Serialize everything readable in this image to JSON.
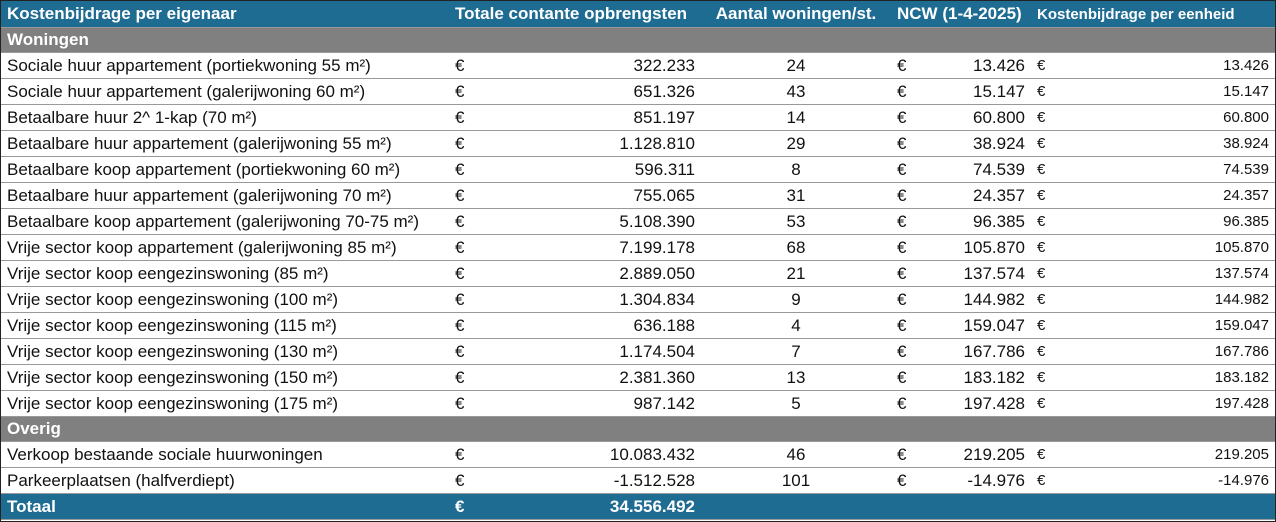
{
  "header": [
    "Kostenbijdrage per eigenaar",
    "Totale contante opbrengsten",
    "Aantal woningen/st.",
    "NCW (1-4-2025)",
    "Kostenbijdrage per eenheid"
  ],
  "sections": [
    {
      "title": "Woningen",
      "rows": [
        [
          "Sociale huur appartement (portiekwoning 55 m²)",
          "€",
          "322.233",
          "24",
          "€",
          "13.426",
          "€",
          "13.426"
        ],
        [
          "Sociale huur appartement (galerijwoning 60 m²)",
          "€",
          "651.326",
          "43",
          "€",
          "15.147",
          "€",
          "15.147"
        ],
        [
          "Betaalbare huur 2^ 1-kap (70 m²)",
          "€",
          "851.197",
          "14",
          "€",
          "60.800",
          "€",
          "60.800"
        ],
        [
          "Betaalbare huur appartement (galerijwoning 55 m²)",
          "€",
          "1.128.810",
          "29",
          "€",
          "38.924",
          "€",
          "38.924"
        ],
        [
          "Betaalbare koop appartement (portiekwoning 60 m²)",
          "€",
          "596.311",
          "8",
          "€",
          "74.539",
          "€",
          "74.539"
        ],
        [
          "Betaalbare huur appartement (galerijwoning 70 m²)",
          "€",
          "755.065",
          "31",
          "€",
          "24.357",
          "€",
          "24.357"
        ],
        [
          "Betaalbare koop appartement (galerijwoning 70-75 m²)",
          "€",
          "5.108.390",
          "53",
          "€",
          "96.385",
          "€",
          "96.385"
        ],
        [
          "Vrije sector koop appartement (galerijwoning 85 m²)",
          "€",
          "7.199.178",
          "68",
          "€",
          "105.870",
          "€",
          "105.870"
        ],
        [
          "Vrije sector koop eengezinswoning (85 m²)",
          "€",
          "2.889.050",
          "21",
          "€",
          "137.574",
          "€",
          "137.574"
        ],
        [
          "Vrije sector koop eengezinswoning (100 m²)",
          "€",
          "1.304.834",
          "9",
          "€",
          "144.982",
          "€",
          "144.982"
        ],
        [
          "Vrije sector koop eengezinswoning (115 m²)",
          "€",
          "636.188",
          "4",
          "€",
          "159.047",
          "€",
          "159.047"
        ],
        [
          "Vrije sector koop eengezinswoning (130 m²)",
          "€",
          "1.174.504",
          "7",
          "€",
          "167.786",
          "€",
          "167.786"
        ],
        [
          "Vrije sector koop eengezinswoning (150 m²)",
          "€",
          "2.381.360",
          "13",
          "€",
          "183.182",
          "€",
          "183.182"
        ],
        [
          "Vrije sector koop eengezinswoning (175 m²)",
          "€",
          "987.142",
          "5",
          "€",
          "197.428",
          "€",
          "197.428"
        ]
      ]
    },
    {
      "title": "Overig",
      "rows": [
        [
          "Verkoop bestaande sociale huurwoningen",
          "€",
          "10.083.432",
          "46",
          "€",
          "219.205",
          "€",
          "219.205"
        ],
        [
          "Parkeerplaatsen (halfverdiept)",
          "€",
          "-1.512.528",
          "101",
          "€",
          "-14.976",
          "€",
          "-14.976"
        ]
      ]
    }
  ],
  "total": [
    "Totaal",
    "€",
    "34.556.492"
  ]
}
